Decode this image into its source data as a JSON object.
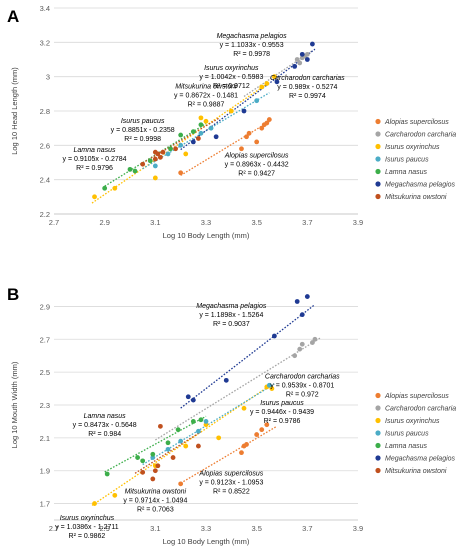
{
  "chart_data": [
    {
      "type": "scatter",
      "panel_label": "A",
      "xlabel": "Log 10 Body Length (mm)",
      "ylabel": "Log 10 Head Length (mm)",
      "xlim": [
        2.7,
        3.9
      ],
      "ylim": [
        2.2,
        3.4
      ],
      "x_ticks": [
        "2.7",
        "2.9",
        "3.1",
        "3.3",
        "3.5",
        "3.7",
        "3.9"
      ],
      "y_ticks": [
        "2.2",
        "2.4",
        "2.6",
        "2.8",
        "3",
        "3.2",
        "3.4"
      ],
      "grid": true,
      "legend_position": "right",
      "series": [
        {
          "name": "Alopias supercilosus",
          "color": "#ed7d31",
          "slope": 0.8963,
          "intercept": -0.4432,
          "line": [
            3.2,
            3.55
          ],
          "points": [
            [
              3.2,
              2.44
            ],
            [
              3.44,
              2.58
            ],
            [
              3.46,
              2.65
            ],
            [
              3.47,
              2.67
            ],
            [
              3.52,
              2.7
            ],
            [
              3.53,
              2.72
            ],
            [
              3.54,
              2.73
            ],
            [
              3.55,
              2.75
            ],
            [
              3.5,
              2.62
            ]
          ]
        },
        {
          "name": "Carcharodon carcharias",
          "color": "#a5a5a5",
          "slope": 0.989,
          "intercept": -0.5274,
          "line": [
            3.45,
            3.72
          ],
          "points": [
            [
              3.66,
              3.1
            ],
            [
              3.68,
              3.11
            ],
            [
              3.67,
              3.08
            ],
            [
              3.69,
              3.12
            ],
            [
              3.7,
              3.13
            ]
          ]
        },
        {
          "name": "Isurus oxyrinchus",
          "color": "#ffc000",
          "slope": 1.0042,
          "intercept": -0.5983,
          "line": [
            2.85,
            3.55
          ],
          "points": [
            [
              2.86,
              2.3
            ],
            [
              2.94,
              2.35
            ],
            [
              3.1,
              2.41
            ],
            [
              3.22,
              2.55
            ],
            [
              3.28,
              2.76
            ],
            [
              3.3,
              2.74
            ],
            [
              3.4,
              2.8
            ],
            [
              3.52,
              2.94
            ],
            [
              3.54,
              2.96
            ],
            [
              3.57,
              3.0
            ]
          ]
        },
        {
          "name": "Isurus paucus",
          "color": "#4bacc6",
          "slope": 0.8851,
          "intercept": -0.2358,
          "line": [
            3.05,
            3.55
          ],
          "points": [
            [
              3.1,
              2.48
            ],
            [
              3.15,
              2.55
            ],
            [
              3.2,
              2.6
            ],
            [
              3.28,
              2.67
            ],
            [
              3.32,
              2.7
            ],
            [
              3.5,
              2.86
            ]
          ]
        },
        {
          "name": "Lamna nasus",
          "color": "#3cae4a",
          "slope": 0.9105,
          "intercept": -0.2784,
          "line": [
            2.9,
            3.3
          ],
          "points": [
            [
              2.9,
              2.35
            ],
            [
              3.0,
              2.46
            ],
            [
              3.02,
              2.45
            ],
            [
              3.08,
              2.51
            ],
            [
              3.16,
              2.58
            ],
            [
              3.2,
              2.66
            ],
            [
              3.25,
              2.68
            ],
            [
              3.28,
              2.72
            ]
          ]
        },
        {
          "name": "Megachasma pelagios",
          "color": "#1f3a93",
          "slope": 1.1033,
          "intercept": -0.9553,
          "line": [
            3.2,
            3.73
          ],
          "points": [
            [
              3.25,
              2.62
            ],
            [
              3.34,
              2.65
            ],
            [
              3.45,
              2.8
            ],
            [
              3.58,
              2.97
            ],
            [
              3.65,
              3.06
            ],
            [
              3.68,
              3.13
            ],
            [
              3.7,
              3.1
            ],
            [
              3.72,
              3.19
            ]
          ]
        },
        {
          "name": "Mitsukurina owstoni",
          "color": "#c0501e",
          "slope": 0.8672,
          "intercept": -0.1481,
          "line": [
            3.05,
            3.35
          ],
          "points": [
            [
              3.05,
              2.49
            ],
            [
              3.1,
              2.52
            ],
            [
              3.1,
              2.56
            ],
            [
              3.11,
              2.55
            ],
            [
              3.12,
              2.53
            ],
            [
              3.13,
              2.56
            ],
            [
              3.18,
              2.58
            ],
            [
              3.27,
              2.64
            ]
          ]
        }
      ],
      "annotations": [
        {
          "series": 5,
          "lines": [
            "Megachasma pelagios",
            "y = 1.1033x - 0.9553",
            "R² = 0.9978"
          ],
          "italic_first": true,
          "x": 3.48,
          "y": 3.225
        },
        {
          "series": 2,
          "lines": [
            "Isurus oxyrinchus",
            "y = 1.0042x - 0.5983",
            "R² = 0.9712"
          ],
          "italic_first": true,
          "x": 3.4,
          "y": 3.04
        },
        {
          "series": 1,
          "lines": [
            "Carcharodon carcharias",
            "y = 0.989x - 0.5274",
            "R² = 0.9974"
          ],
          "italic_first": true,
          "x": 3.7,
          "y": 2.98
        },
        {
          "series": 6,
          "lines": [
            "Mitsukurina owstoni",
            "y = 0.8672x - 0.1481",
            "R² = 0.9887"
          ],
          "italic_first": true,
          "x": 3.3,
          "y": 2.93
        },
        {
          "series": 3,
          "lines": [
            "Isurus paucus",
            "y = 0.8851x - 0.2358",
            "R² = 0.9998"
          ],
          "italic_first": true,
          "x": 3.05,
          "y": 2.73
        },
        {
          "series": 4,
          "lines": [
            "Lamna nasus",
            "y = 0.9105x - 0.2784",
            "R² = 0.9796"
          ],
          "italic_first": true,
          "x": 2.86,
          "y": 2.56
        },
        {
          "series": 0,
          "lines": [
            "Alopias supercilosus",
            "y = 0.8963x - 0.4432",
            "R² = 0.9427"
          ],
          "italic_first": true,
          "x": 3.5,
          "y": 2.53
        }
      ]
    },
    {
      "type": "scatter",
      "panel_label": "B",
      "xlabel": "Log 10 Body Length (mm)",
      "ylabel": "Log 10 Mouth Width (mm)",
      "xlim": [
        2.7,
        3.9
      ],
      "ylim": [
        1.6,
        3.0
      ],
      "x_ticks": [
        "2.7",
        "2.9",
        "3.1",
        "3.3",
        "3.5",
        "3.7",
        "3.9"
      ],
      "y_ticks": [
        "1.7",
        "1.9",
        "2.1",
        "2.3",
        "2.5",
        "2.7",
        "2.9"
      ],
      "grid": true,
      "legend_position": "right",
      "series": [
        {
          "name": "Alopias supercilosus",
          "color": "#ed7d31",
          "slope": 0.9123,
          "intercept": -1.0953,
          "line": [
            3.2,
            3.58
          ],
          "points": [
            [
              3.2,
              1.82
            ],
            [
              3.44,
              2.01
            ],
            [
              3.45,
              2.05
            ],
            [
              3.46,
              2.06
            ],
            [
              3.5,
              2.12
            ],
            [
              3.52,
              2.15
            ],
            [
              3.54,
              2.18
            ]
          ]
        },
        {
          "name": "Carcharodon carcharias",
          "color": "#a5a5a5",
          "slope": 0.9539,
          "intercept": -0.8701,
          "line": [
            3.1,
            3.75
          ],
          "points": [
            [
              3.65,
              2.6
            ],
            [
              3.67,
              2.64
            ],
            [
              3.68,
              2.67
            ],
            [
              3.72,
              2.68
            ],
            [
              3.73,
              2.7
            ]
          ]
        },
        {
          "name": "Isurus oxyrinchus",
          "color": "#ffc000",
          "slope": 1.0386,
          "intercept": -1.2711,
          "line": [
            2.85,
            3.55
          ],
          "points": [
            [
              2.86,
              1.7
            ],
            [
              2.94,
              1.75
            ],
            [
              3.1,
              1.93
            ],
            [
              3.22,
              2.05
            ],
            [
              3.3,
              2.18
            ],
            [
              3.35,
              2.1
            ],
            [
              3.45,
              2.28
            ],
            [
              3.54,
              2.41
            ],
            [
              3.56,
              2.4
            ]
          ]
        },
        {
          "name": "Isurus paucus",
          "color": "#4bacc6",
          "slope": 0.9446,
          "intercept": -0.9439,
          "line": [
            3.05,
            3.57
          ],
          "points": [
            [
              3.09,
              1.98
            ],
            [
              3.15,
              2.03
            ],
            [
              3.2,
              2.08
            ],
            [
              3.27,
              2.14
            ],
            [
              3.3,
              2.2
            ],
            [
              3.55,
              2.42
            ]
          ]
        },
        {
          "name": "Lamna nasus",
          "color": "#3cae4a",
          "slope": 0.8473,
          "intercept": -0.5648,
          "line": [
            2.9,
            3.3
          ],
          "points": [
            [
              2.91,
              1.88
            ],
            [
              3.03,
              1.98
            ],
            [
              3.05,
              1.96
            ],
            [
              3.09,
              2.0
            ],
            [
              3.15,
              2.07
            ],
            [
              3.19,
              2.15
            ],
            [
              3.25,
              2.2
            ],
            [
              3.28,
              2.21
            ]
          ]
        },
        {
          "name": "Megachasma pelagios",
          "color": "#1f3a93",
          "slope": 1.1898,
          "intercept": -1.5264,
          "line": [
            3.2,
            3.73
          ],
          "points": [
            [
              3.23,
              2.35
            ],
            [
              3.25,
              2.33
            ],
            [
              3.38,
              2.45
            ],
            [
              3.57,
              2.72
            ],
            [
              3.66,
              2.93
            ],
            [
              3.7,
              2.96
            ],
            [
              3.68,
              2.85
            ]
          ]
        },
        {
          "name": "Mitsukurina owstoni",
          "color": "#c0501e",
          "slope": 0.9714,
          "intercept": -1.0494,
          "line": [
            3.02,
            3.28
          ],
          "points": [
            [
              3.05,
              1.89
            ],
            [
              3.09,
              1.85
            ],
            [
              3.1,
              1.9
            ],
            [
              3.11,
              1.93
            ],
            [
              3.12,
              2.17
            ],
            [
              3.17,
              1.98
            ],
            [
              3.27,
              2.05
            ]
          ]
        }
      ],
      "annotations": [
        {
          "series": 5,
          "lines": [
            "Megachasma pelagios",
            "y = 1.1898x - 1.5264",
            "R² = 0.9037"
          ],
          "italic_first": true,
          "x": 3.4,
          "y": 2.89
        },
        {
          "series": 1,
          "lines": [
            "Carcharodon carcharias",
            "y = 0.9539x - 0.8701",
            "R² = 0.972"
          ],
          "italic_first": true,
          "x": 3.68,
          "y": 2.46
        },
        {
          "series": 3,
          "lines": [
            "Isurus paucus",
            "y = 0.9446x - 0.9439",
            "R² = 0.9786"
          ],
          "italic_first": true,
          "x": 3.6,
          "y": 2.3
        },
        {
          "series": 4,
          "lines": [
            "Lamna nasus",
            "y = 0.8473x - 0.5648",
            "R² = 0.984"
          ],
          "italic_first": true,
          "x": 2.9,
          "y": 2.22
        },
        {
          "series": 0,
          "lines": [
            "Alopias supercilosus",
            "y = 0.9123x - 1.0953",
            "R² = 0.8522"
          ],
          "italic_first": true,
          "x": 3.4,
          "y": 1.87
        },
        {
          "series": 6,
          "lines": [
            "Mitsukurina owstoni",
            "y = 0.9714x - 1.0494",
            "R² = 0.7063"
          ],
          "italic_first": true,
          "x": 3.1,
          "y": 1.76
        },
        {
          "series": 2,
          "lines": [
            "Isurus oxyrinchus",
            "y = 1.0386x - 1.2711",
            "R² = 0.9862"
          ],
          "italic_first": true,
          "x": 2.83,
          "y": 1.6
        }
      ]
    }
  ]
}
